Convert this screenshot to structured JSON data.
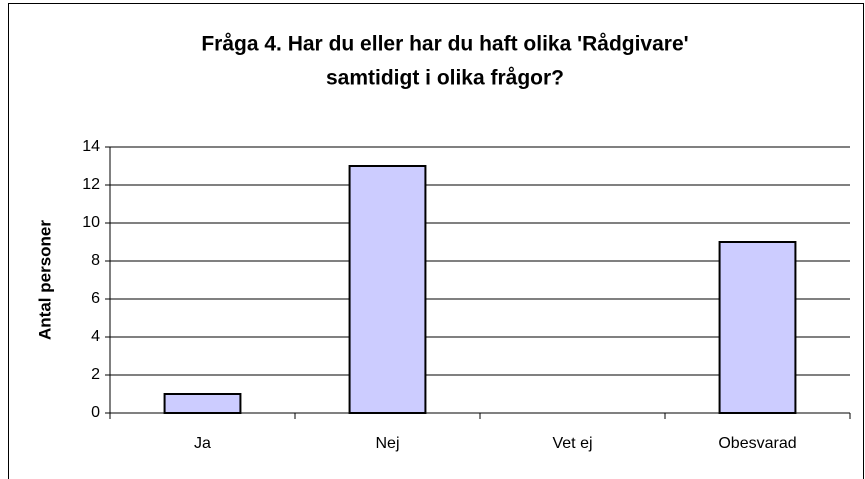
{
  "chart_data": {
    "type": "bar",
    "title": [
      "Fråga 4. Har du eller har du haft olika 'Rådgivare'",
      "samtidigt i olika frågor?"
    ],
    "y_label": "Antal personer",
    "categories": [
      "Ja",
      "Nej",
      "Vet ej",
      "Obesvarad"
    ],
    "values": [
      1,
      13,
      0,
      9
    ],
    "color": "#ccccff",
    "ylim": [
      0,
      14
    ],
    "yticks": [
      0,
      2,
      4,
      6,
      8,
      10,
      12,
      14
    ],
    "grid": true
  }
}
